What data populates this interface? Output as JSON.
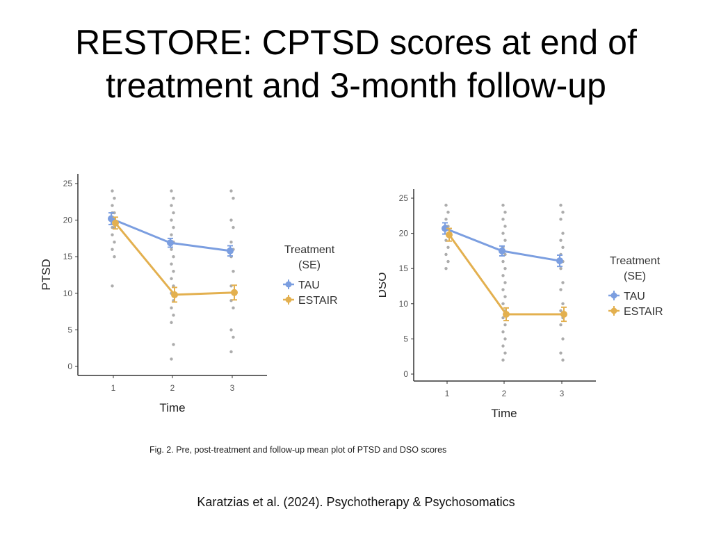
{
  "slide": {
    "title": "RESTORE: CPTSD scores at end of treatment and 3-month follow-up",
    "caption": "Fig. 2. Pre, post-treatment and follow-up mean plot of PTSD and DSO scores",
    "citation": "Karatzias et al. (2024). Psychotherapy & Psychosomatics"
  },
  "colors": {
    "tau": "#7b9ee0",
    "estair": "#e3b04f",
    "axis": "#333333",
    "tick_text": "#555555",
    "dots": "#9e9e9e"
  },
  "chart_data": [
    {
      "id": "ptsd",
      "type": "line",
      "title": "",
      "xlabel": "Time",
      "ylabel": "PTSD",
      "categories": [
        "1",
        "2",
        "3"
      ],
      "ylim": [
        0,
        25
      ],
      "yticks": [
        0,
        5,
        10,
        15,
        20,
        25
      ],
      "legend": {
        "title_line1": "Treatment",
        "title_line2": "(SE)",
        "position": "right"
      },
      "series": [
        {
          "name": "TAU",
          "values": [
            20.2,
            16.9,
            15.8
          ],
          "se": [
            0.8,
            0.6,
            0.7
          ]
        },
        {
          "name": "ESTAIR",
          "values": [
            19.6,
            9.8,
            10.1
          ],
          "se": [
            0.8,
            1.0,
            1.0
          ]
        }
      ],
      "individual_points": [
        {
          "x": "1",
          "values": [
            24,
            23,
            22,
            21,
            21,
            20,
            20,
            20,
            19,
            19,
            18,
            17,
            16,
            15,
            11
          ]
        },
        {
          "x": "2",
          "values": [
            24,
            23,
            22,
            21,
            20,
            19,
            18,
            17,
            16,
            15,
            14,
            13,
            12,
            11,
            10,
            9,
            8,
            7,
            6,
            3,
            1
          ]
        },
        {
          "x": "3",
          "values": [
            24,
            23,
            20,
            19,
            17,
            16,
            15,
            13,
            11,
            10,
            9,
            8,
            5,
            4,
            2
          ]
        }
      ]
    },
    {
      "id": "dso",
      "type": "line",
      "title": "",
      "xlabel": "Time",
      "ylabel": "DSO",
      "categories": [
        "1",
        "2",
        "3"
      ],
      "ylim": [
        0,
        25
      ],
      "yticks": [
        0,
        5,
        10,
        15,
        20,
        25
      ],
      "legend": {
        "title_line1": "Treatment",
        "title_line2": "(SE)",
        "position": "right"
      },
      "series": [
        {
          "name": "TAU",
          "values": [
            20.7,
            17.5,
            16.1
          ],
          "se": [
            0.8,
            0.7,
            0.8
          ]
        },
        {
          "name": "ESTAIR",
          "values": [
            19.8,
            8.5,
            8.5
          ],
          "se": [
            0.9,
            0.9,
            1.0
          ]
        }
      ],
      "individual_points": [
        {
          "x": "1",
          "values": [
            24,
            23,
            22,
            21,
            21,
            20,
            19,
            18,
            17,
            16,
            15
          ]
        },
        {
          "x": "2",
          "values": [
            24,
            23,
            22,
            21,
            20,
            19,
            18,
            17,
            16,
            15,
            14,
            13,
            12,
            11,
            10,
            9,
            8,
            7,
            6,
            5,
            4,
            3,
            2
          ]
        },
        {
          "x": "3",
          "values": [
            24,
            23,
            22,
            20,
            19,
            18,
            17,
            16,
            15,
            13,
            12,
            10,
            9,
            8,
            7,
            5,
            3,
            2
          ]
        }
      ]
    }
  ]
}
